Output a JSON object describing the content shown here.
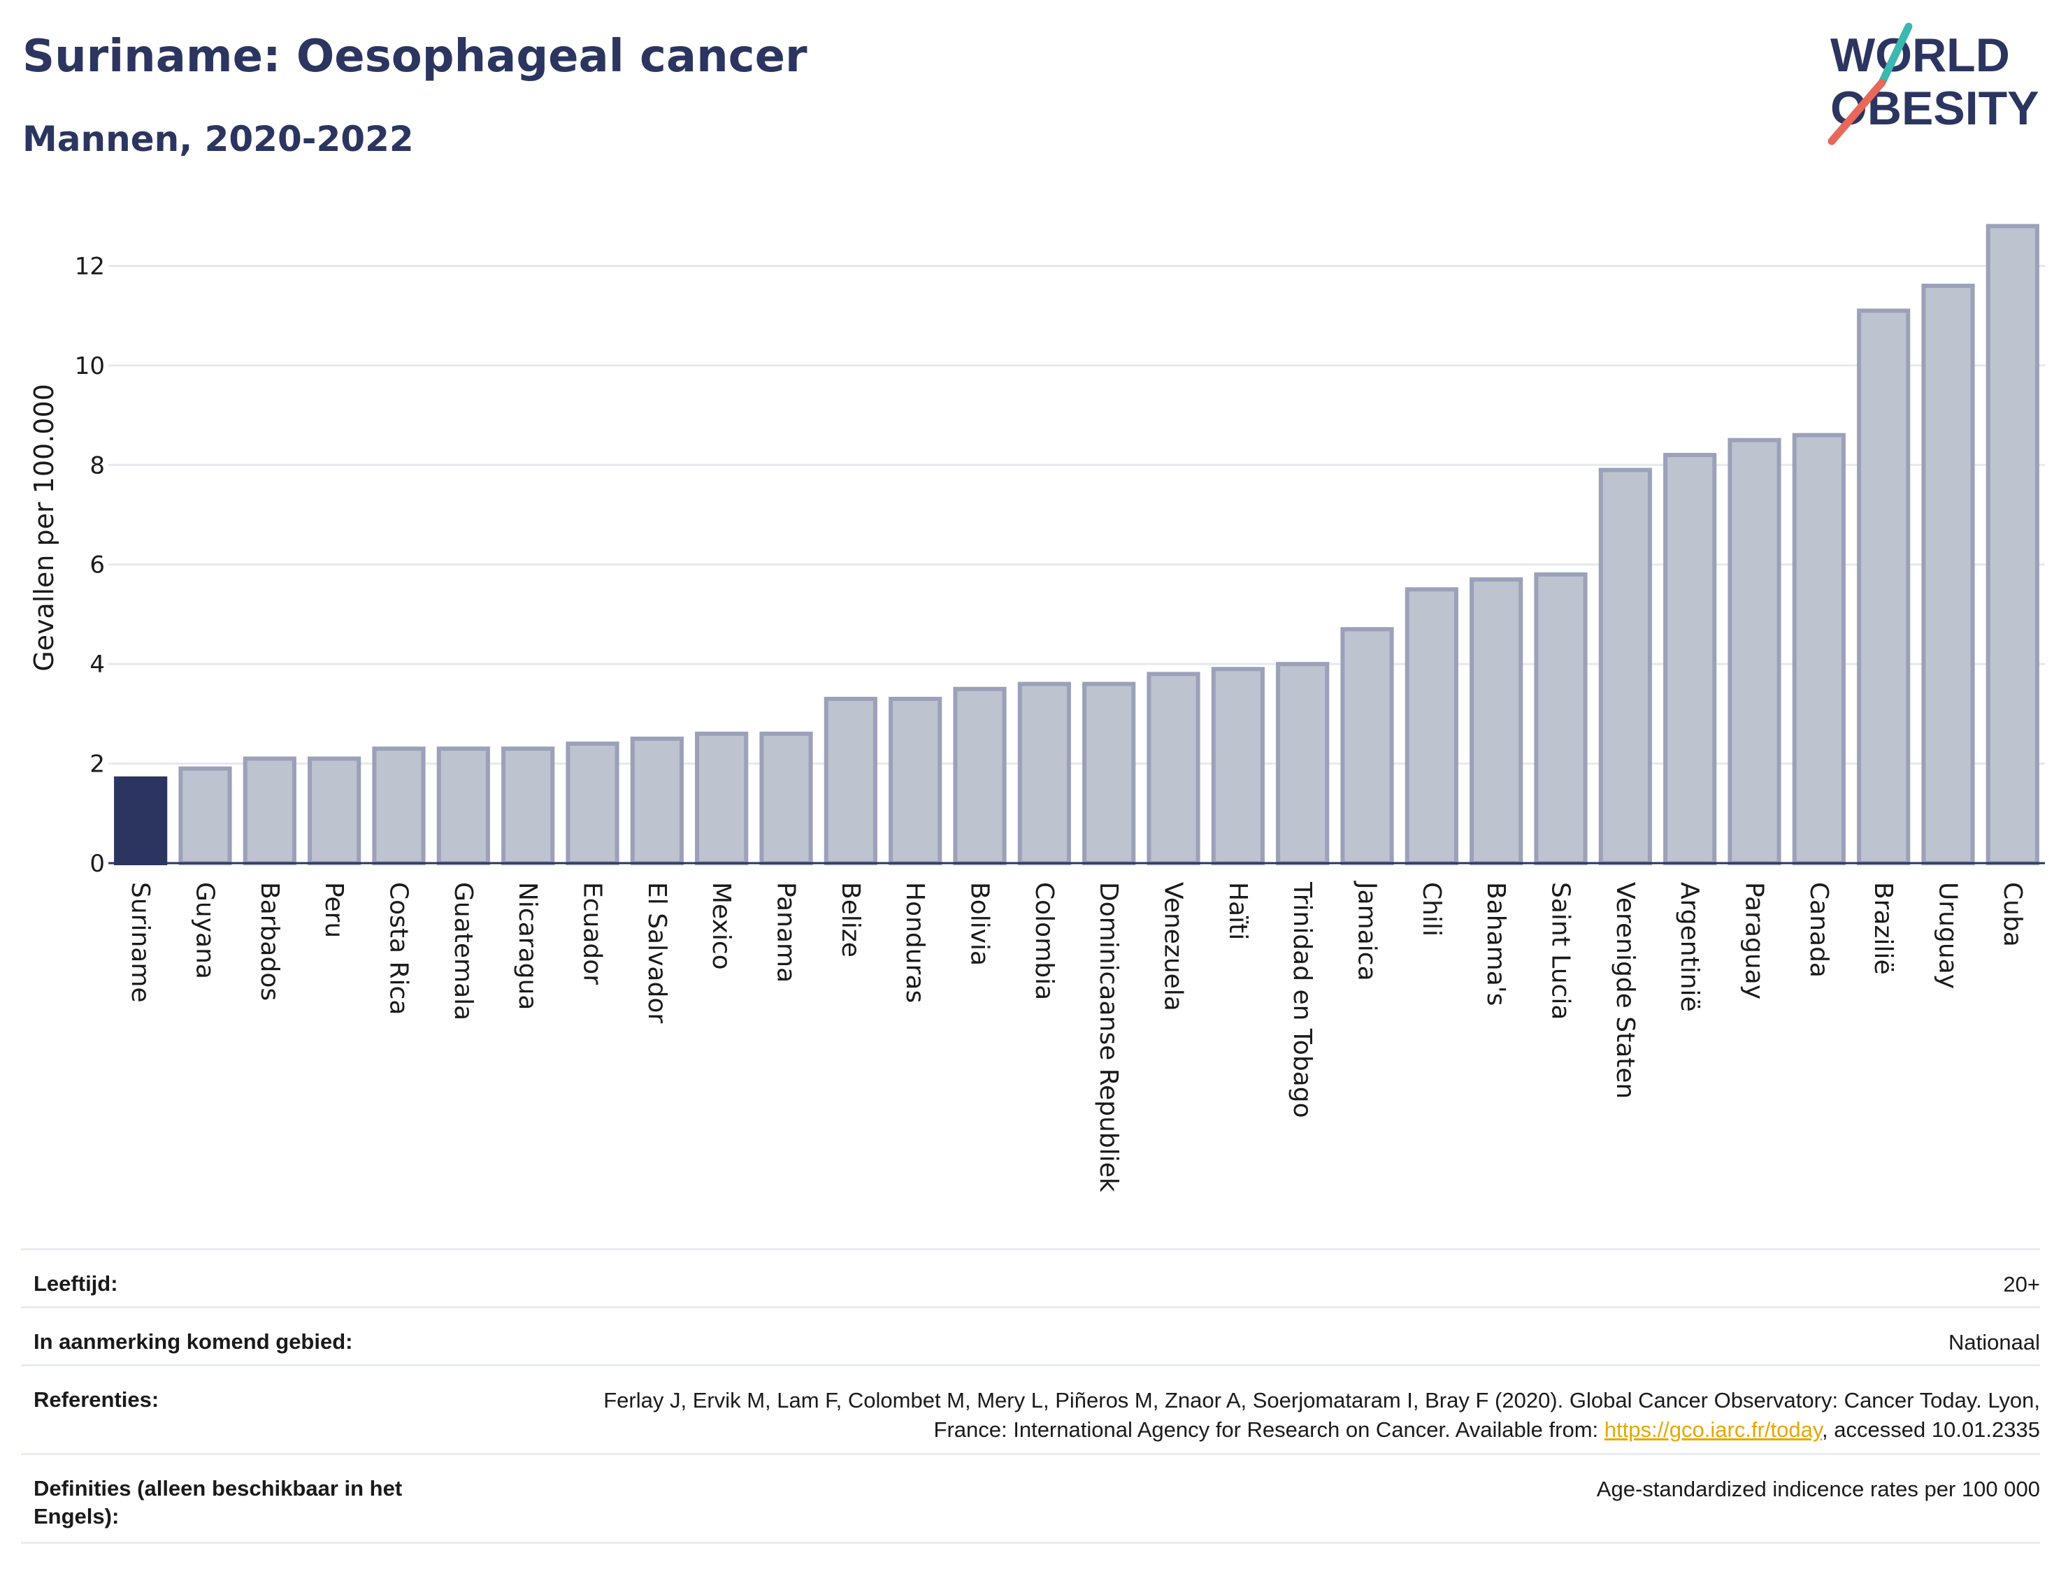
{
  "header": {
    "title": "Suriname: Oesophageal cancer",
    "subtitle": "Mannen, 2020-2022"
  },
  "logo": {
    "line1": "WORLD",
    "line2": "OBESITY",
    "accent_teal": "#3bb8b0",
    "accent_red": "#e8685a"
  },
  "colors": {
    "highlight_bar": "#2b3560",
    "other_bar_fill": "#bec3d0",
    "other_bar_stroke": "#9aa1b8",
    "grid": "#e6e8ee"
  },
  "chart_data": {
    "type": "bar",
    "title": "Suriname: Oesophageal cancer",
    "subtitle": "Mannen, 2020-2022",
    "xlabel": "",
    "ylabel": "Gevallen per 100.000",
    "ylim": [
      0,
      13.2
    ],
    "yticks": [
      0,
      2,
      4,
      6,
      8,
      10,
      12
    ],
    "grid": true,
    "highlight": "Suriname",
    "categories": [
      "Suriname",
      "Guyana",
      "Barbados",
      "Peru",
      "Costa Rica",
      "Guatemala",
      "Nicaragua",
      "Ecuador",
      "El Salvador",
      "Mexico",
      "Panama",
      "Belize",
      "Honduras",
      "Bolivia",
      "Colombia",
      "Dominicaanse Republiek",
      "Venezuela",
      "Haïti",
      "Trinidad en Tobago",
      "Jamaica",
      "Chili",
      "Bahama's",
      "Saint Lucia",
      "Verenigde Staten",
      "Argentinië",
      "Paraguay",
      "Canada",
      "Brazilië",
      "Uruguay",
      "Cuba"
    ],
    "values": [
      1.7,
      1.9,
      2.1,
      2.1,
      2.3,
      2.3,
      2.3,
      2.4,
      2.5,
      2.6,
      2.6,
      3.3,
      3.3,
      3.5,
      3.6,
      3.6,
      3.8,
      3.9,
      4.0,
      4.7,
      5.5,
      5.7,
      5.8,
      7.9,
      8.2,
      8.5,
      8.6,
      11.1,
      11.6,
      12.8
    ]
  },
  "meta": {
    "age_label": "Leeftijd:",
    "age_value": "20+",
    "area_label": "In aanmerking komend gebied:",
    "area_value": "Nationaal",
    "ref_label": "Referenties:",
    "ref_text_1": "Ferlay J, Ervik M, Lam F, Colombet M, Mery L, Piñeros M, Znaor A, Soerjomataram I, Bray F (2020). Global Cancer Observatory: Cancer Today. Lyon, France: International Agency for Research on Cancer. Available from: ",
    "ref_link": "https://gco.iarc.fr/today",
    "ref_text_2": ", accessed 10.01.2335",
    "def_label": "Definities (alleen beschikbaar in het Engels):",
    "def_value": "Age-standardized indicence rates per 100 000"
  }
}
